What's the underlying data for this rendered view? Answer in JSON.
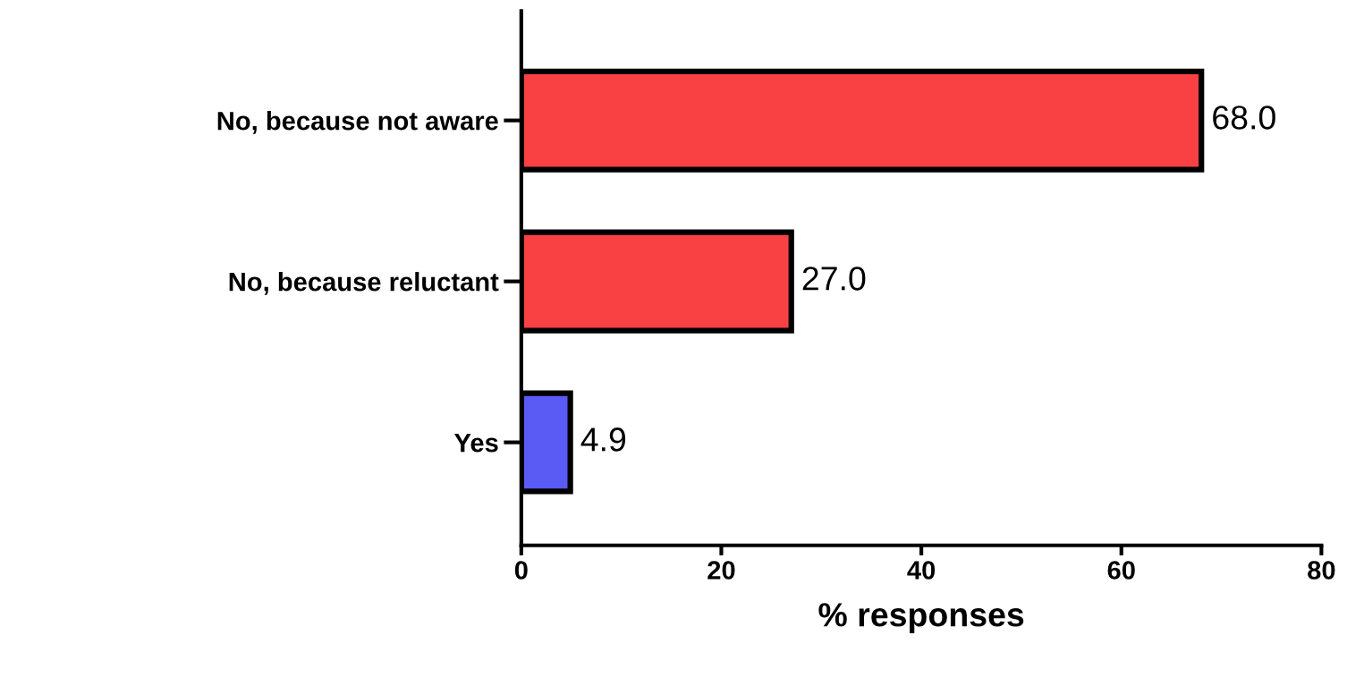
{
  "chart_data": {
    "type": "bar",
    "orientation": "horizontal",
    "xlabel": "% responses",
    "categories": [
      "No, because not aware",
      "No, because reluctant",
      "Yes"
    ],
    "values": [
      68.0,
      27.0,
      4.9
    ],
    "colors": [
      "#f94144",
      "#f94144",
      "#5a5af5"
    ],
    "value_labels": [
      "68.0",
      "27.0",
      "4.9"
    ],
    "xlim": [
      0,
      80
    ],
    "xticks": [
      0,
      20,
      40,
      60,
      80
    ]
  }
}
